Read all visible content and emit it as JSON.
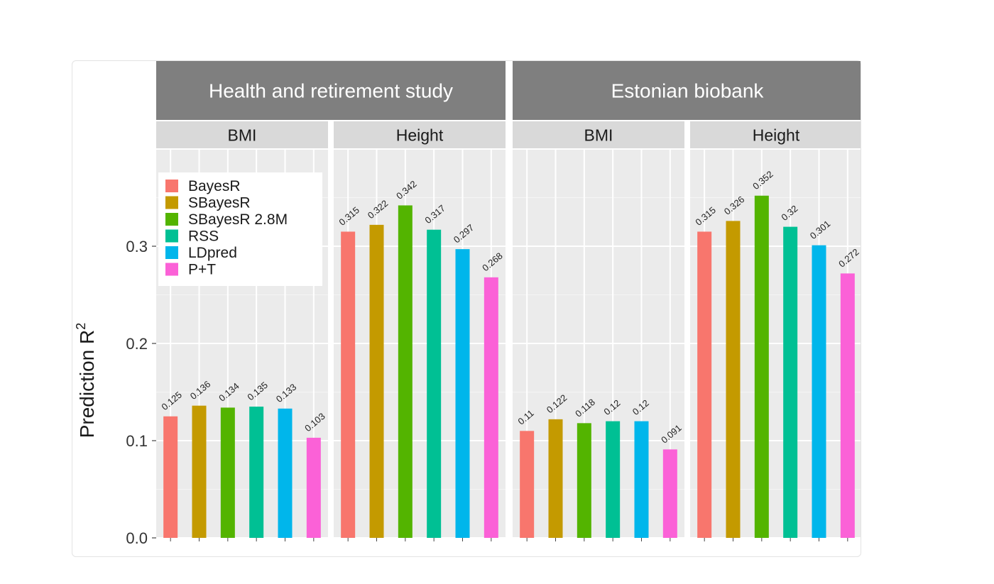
{
  "chart_data": {
    "type": "bar",
    "ylabel": "Prediction R",
    "ylabel_superscript": "2",
    "ylim": [
      0,
      0.4
    ],
    "yticks": [
      "0.0",
      "0.1",
      "0.2",
      "0.3"
    ],
    "grid": true,
    "legend_position": "top-left",
    "series": [
      {
        "name": "BayesR",
        "color": "#f8766d"
      },
      {
        "name": "SBayesR",
        "color": "#c49a00"
      },
      {
        "name": "SBayesR 2.8M",
        "color": "#53b400"
      },
      {
        "name": "RSS",
        "color": "#00c094"
      },
      {
        "name": "LDpred",
        "color": "#00b6eb"
      },
      {
        "name": "P+T",
        "color": "#fb61d7"
      }
    ],
    "groups": [
      {
        "title": "Health and retirement study",
        "panels": [
          {
            "title": "BMI",
            "values": [
              0.125,
              0.136,
              0.134,
              0.135,
              0.133,
              0.103
            ],
            "labels": [
              "0.125",
              "0.136",
              "0.134",
              "0.135",
              "0.133",
              "0.103"
            ]
          },
          {
            "title": "Height",
            "values": [
              0.315,
              0.322,
              0.342,
              0.317,
              0.297,
              0.268
            ],
            "labels": [
              "0.315",
              "0.322",
              "0.342",
              "0.317",
              "0.297",
              "0.268"
            ]
          }
        ]
      },
      {
        "title": "Estonian biobank",
        "panels": [
          {
            "title": "BMI",
            "values": [
              0.11,
              0.122,
              0.118,
              0.12,
              0.12,
              0.091
            ],
            "labels": [
              "0.11",
              "0.122",
              "0.118",
              "0.12",
              "0.12",
              "0.091"
            ]
          },
          {
            "title": "Height",
            "values": [
              0.315,
              0.326,
              0.352,
              0.32,
              0.301,
              0.272
            ],
            "labels": [
              "0.315",
              "0.326",
              "0.352",
              "0.32",
              "0.301",
              "0.272"
            ]
          }
        ]
      }
    ]
  }
}
